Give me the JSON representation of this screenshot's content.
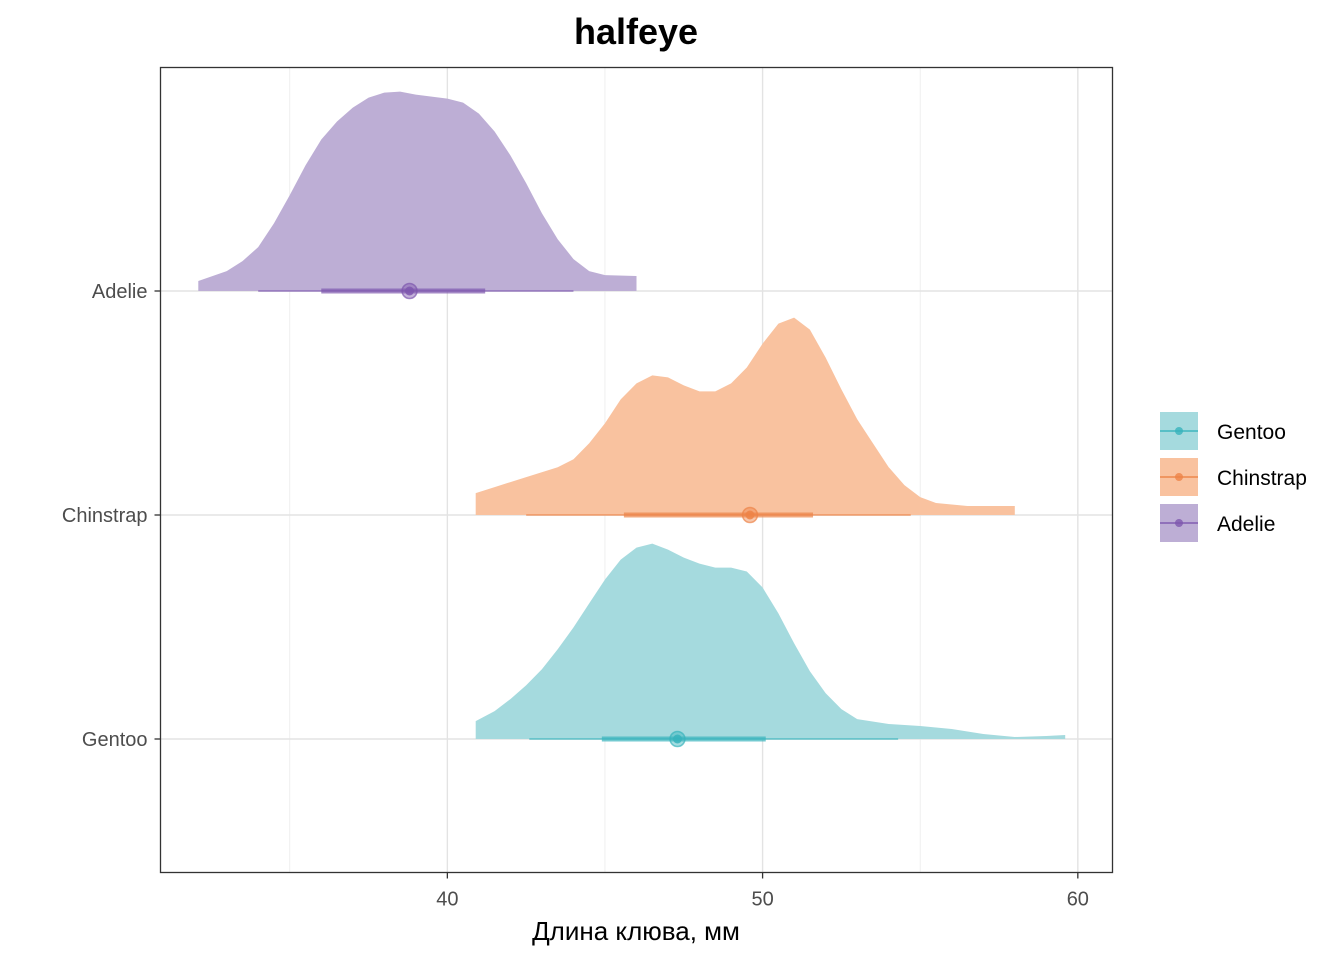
{
  "chart_data": {
    "type": "halfeye",
    "title": "halfeye",
    "xlabel": "Длина клюва, мм",
    "ylabel": "",
    "xlim": [
      30.9,
      61.1
    ],
    "x_ticks": [
      40,
      50,
      60
    ],
    "x_minor_gridlines": [
      35,
      45,
      55
    ],
    "categories": [
      "Adelie",
      "Chinstrap",
      "Gentoo"
    ],
    "grid": true,
    "legend_position": "right",
    "series": [
      {
        "name": "Adelie",
        "color": "#7e57ae",
        "fill": "#bdaed5",
        "point": 38.8,
        "interval_66": [
          36.0,
          41.2
        ],
        "interval_95": [
          34.0,
          44.0
        ],
        "range": [
          32.1,
          46.0
        ],
        "density": [
          [
            32.1,
            0.05
          ],
          [
            33.0,
            0.1
          ],
          [
            33.5,
            0.15
          ],
          [
            34.0,
            0.22
          ],
          [
            34.5,
            0.34
          ],
          [
            35.0,
            0.48
          ],
          [
            35.5,
            0.63
          ],
          [
            36.0,
            0.76
          ],
          [
            36.5,
            0.85
          ],
          [
            37.0,
            0.92
          ],
          [
            37.5,
            0.97
          ],
          [
            38.0,
            0.995
          ],
          [
            38.5,
            1.0
          ],
          [
            39.0,
            0.985
          ],
          [
            39.5,
            0.975
          ],
          [
            40.0,
            0.965
          ],
          [
            40.5,
            0.945
          ],
          [
            41.0,
            0.89
          ],
          [
            41.5,
            0.8
          ],
          [
            42.0,
            0.68
          ],
          [
            42.5,
            0.54
          ],
          [
            43.0,
            0.39
          ],
          [
            43.5,
            0.26
          ],
          [
            44.0,
            0.16
          ],
          [
            44.5,
            0.1
          ],
          [
            45.0,
            0.08
          ],
          [
            46.0,
            0.075
          ]
        ]
      },
      {
        "name": "Chinstrap",
        "color": "#ed8347",
        "fill": "#f9c29f",
        "point": 49.6,
        "interval_66": [
          45.6,
          51.6
        ],
        "interval_95": [
          42.5,
          54.7
        ],
        "range": [
          40.9,
          58.0
        ],
        "density": [
          [
            40.9,
            0.11
          ],
          [
            41.5,
            0.14
          ],
          [
            42.5,
            0.19
          ],
          [
            43.5,
            0.24
          ],
          [
            44.0,
            0.28
          ],
          [
            44.5,
            0.36
          ],
          [
            45.0,
            0.46
          ],
          [
            45.5,
            0.58
          ],
          [
            46.0,
            0.66
          ],
          [
            46.5,
            0.7
          ],
          [
            47.0,
            0.69
          ],
          [
            47.5,
            0.65
          ],
          [
            48.0,
            0.62
          ],
          [
            48.5,
            0.62
          ],
          [
            49.0,
            0.66
          ],
          [
            49.5,
            0.74
          ],
          [
            50.0,
            0.86
          ],
          [
            50.5,
            0.96
          ],
          [
            51.0,
            0.99
          ],
          [
            51.5,
            0.93
          ],
          [
            52.0,
            0.79
          ],
          [
            52.5,
            0.63
          ],
          [
            53.0,
            0.48
          ],
          [
            53.5,
            0.36
          ],
          [
            54.0,
            0.24
          ],
          [
            54.5,
            0.15
          ],
          [
            55.0,
            0.09
          ],
          [
            55.5,
            0.06
          ],
          [
            56.5,
            0.045
          ],
          [
            58.0,
            0.045
          ]
        ]
      },
      {
        "name": "Gentoo",
        "color": "#37b3bc",
        "fill": "#a5dade",
        "point": 47.3,
        "interval_66": [
          44.9,
          50.1
        ],
        "interval_95": [
          42.6,
          54.3
        ],
        "range": [
          40.9,
          59.6
        ],
        "density": [
          [
            40.9,
            0.09
          ],
          [
            41.5,
            0.14
          ],
          [
            42.0,
            0.2
          ],
          [
            42.5,
            0.27
          ],
          [
            43.0,
            0.35
          ],
          [
            43.5,
            0.45
          ],
          [
            44.0,
            0.56
          ],
          [
            44.5,
            0.68
          ],
          [
            45.0,
            0.8
          ],
          [
            45.5,
            0.9
          ],
          [
            46.0,
            0.96
          ],
          [
            46.5,
            0.98
          ],
          [
            47.0,
            0.95
          ],
          [
            47.5,
            0.91
          ],
          [
            48.0,
            0.88
          ],
          [
            48.5,
            0.86
          ],
          [
            49.0,
            0.86
          ],
          [
            49.5,
            0.84
          ],
          [
            50.0,
            0.76
          ],
          [
            50.5,
            0.63
          ],
          [
            51.0,
            0.48
          ],
          [
            51.5,
            0.34
          ],
          [
            52.0,
            0.23
          ],
          [
            52.5,
            0.15
          ],
          [
            53.0,
            0.1
          ],
          [
            54.0,
            0.075
          ],
          [
            55.0,
            0.065
          ],
          [
            56.0,
            0.05
          ],
          [
            57.0,
            0.025
          ],
          [
            58.0,
            0.01
          ],
          [
            59.0,
            0.015
          ],
          [
            59.6,
            0.02
          ]
        ]
      }
    ],
    "legend": [
      "Gentoo",
      "Chinstrap",
      "Adelie"
    ]
  }
}
